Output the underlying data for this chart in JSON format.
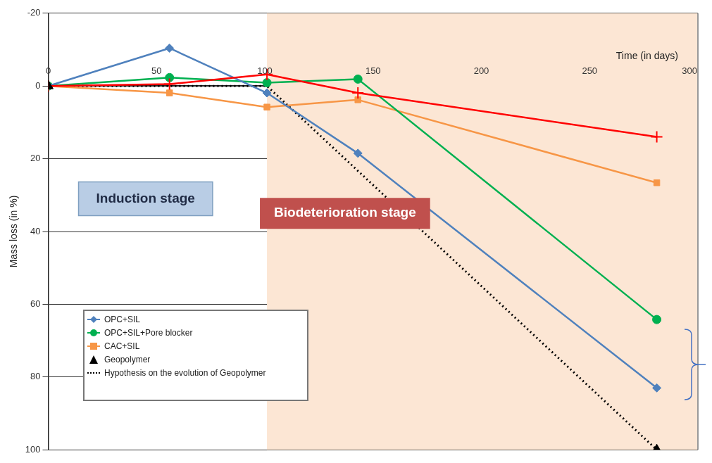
{
  "chart_data": {
    "type": "line",
    "xlabel": "Time (in days)",
    "ylabel": "Mass loss (in %)",
    "xlim": [
      0,
      300
    ],
    "xticks": [
      0,
      50,
      100,
      150,
      200,
      250,
      300
    ],
    "ylim": [
      100,
      -20
    ],
    "yticks": [
      -20,
      0,
      20,
      40,
      60,
      80,
      100
    ],
    "grid": "y",
    "legend": "bottom left",
    "series": [
      {
        "name": "OPC+SIL",
        "color": "#4f81bd",
        "marker": "diamond",
        "x": [
          0,
          56,
          101,
          143,
          281
        ],
        "values": [
          0,
          -10.4,
          1.9,
          18.5,
          83
        ]
      },
      {
        "name": "OPC+SIL+Pore blocker",
        "color": "#00b050",
        "marker": "circle",
        "x": [
          0,
          56,
          101,
          143,
          281
        ],
        "values": [
          0,
          -2.3,
          -0.9,
          -1.9,
          64.2
        ]
      },
      {
        "name": "CAC+SIL",
        "color": "#f79646",
        "marker": "square",
        "x": [
          0,
          56,
          101,
          143,
          281
        ],
        "values": [
          0,
          1.9,
          5.8,
          3.8,
          26.6
        ]
      },
      {
        "color": "#ff0000",
        "marker": "cross",
        "x": [
          0,
          56,
          101,
          143,
          281
        ],
        "values": [
          0,
          -0.5,
          -3.2,
          1.9,
          14
        ]
      },
      {
        "name": "Geopolymer",
        "type": "scatter",
        "color": "#000000",
        "marker": "triangle",
        "x": [
          0,
          281
        ],
        "values": [
          0,
          100
        ]
      },
      {
        "name": "Hypothesis on the evolution of Geopolymer",
        "color": "#000000",
        "marker": "none",
        "line_style": "dotted",
        "x": [
          0,
          101,
          281
        ],
        "values": [
          0,
          0,
          100
        ]
      }
    ],
    "bands": [
      {
        "axis": "x",
        "from": 101,
        "to": 300,
        "label": "Biodeterioration stage",
        "color": "#fce6d4"
      }
    ],
    "annotations": [
      "Induction stage"
    ]
  }
}
